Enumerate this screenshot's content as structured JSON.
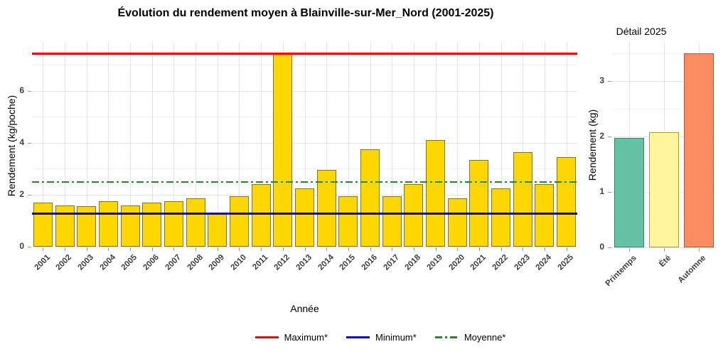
{
  "figure": {
    "background": "#ffffff"
  },
  "chart_data": [
    {
      "type": "bar",
      "title": "Évolution du rendement moyen à Blainville-sur-Mer_Nord (2001-2025)",
      "xlabel": "Année",
      "ylabel": "Rendement (kg/poche)",
      "categories": [
        2001,
        2002,
        2003,
        2004,
        2005,
        2006,
        2007,
        2008,
        2009,
        2010,
        2011,
        2012,
        2013,
        2014,
        2015,
        2016,
        2017,
        2018,
        2019,
        2020,
        2021,
        2022,
        2023,
        2024,
        2025
      ],
      "values": [
        1.7,
        1.6,
        1.55,
        1.75,
        1.6,
        1.7,
        1.75,
        1.85,
        1.3,
        1.95,
        2.4,
        7.45,
        2.25,
        2.95,
        1.95,
        3.75,
        1.95,
        2.4,
        4.1,
        1.85,
        3.35,
        2.25,
        3.65,
        2.4,
        3.45
      ],
      "ylim": [
        0,
        7.86
      ],
      "yticks": [
        0,
        2,
        4,
        6
      ],
      "yticks_minor": [
        1,
        3,
        5,
        7
      ],
      "grid": true,
      "legend_position": "bottom",
      "bar_fill": "#FFD700",
      "bar_border": "#7d762a",
      "ref_lines": [
        {
          "name": "maximum",
          "label": "Maximum*",
          "value": 7.45,
          "color": "#FF0000",
          "style": "solid"
        },
        {
          "name": "minimum",
          "label": "Minimum*",
          "value": 1.3,
          "color": "#0000FF",
          "style": "solid"
        },
        {
          "name": "moyenne",
          "label": "Moyenne*",
          "value": 2.5,
          "color": "#228B22",
          "style": "dashdot"
        }
      ]
    },
    {
      "type": "bar",
      "title": "Détail 2025",
      "xlabel": "",
      "ylabel": "Rendement (kg)",
      "categories": [
        "Printemps",
        "Été",
        "Automne"
      ],
      "values": [
        1.97,
        2.07,
        3.5
      ],
      "ylim": [
        0,
        3.69
      ],
      "yticks": [
        0,
        1,
        2,
        3
      ],
      "yticks_minor": [
        0.5,
        1.5,
        2.5,
        3.5
      ],
      "grid": true,
      "bar_colors": [
        "#66C2A5",
        "#FFF59D",
        "#FC8D62"
      ],
      "bar_borders": [
        "#3e7e69",
        "#a69d3f",
        "#a85a36"
      ]
    }
  ]
}
